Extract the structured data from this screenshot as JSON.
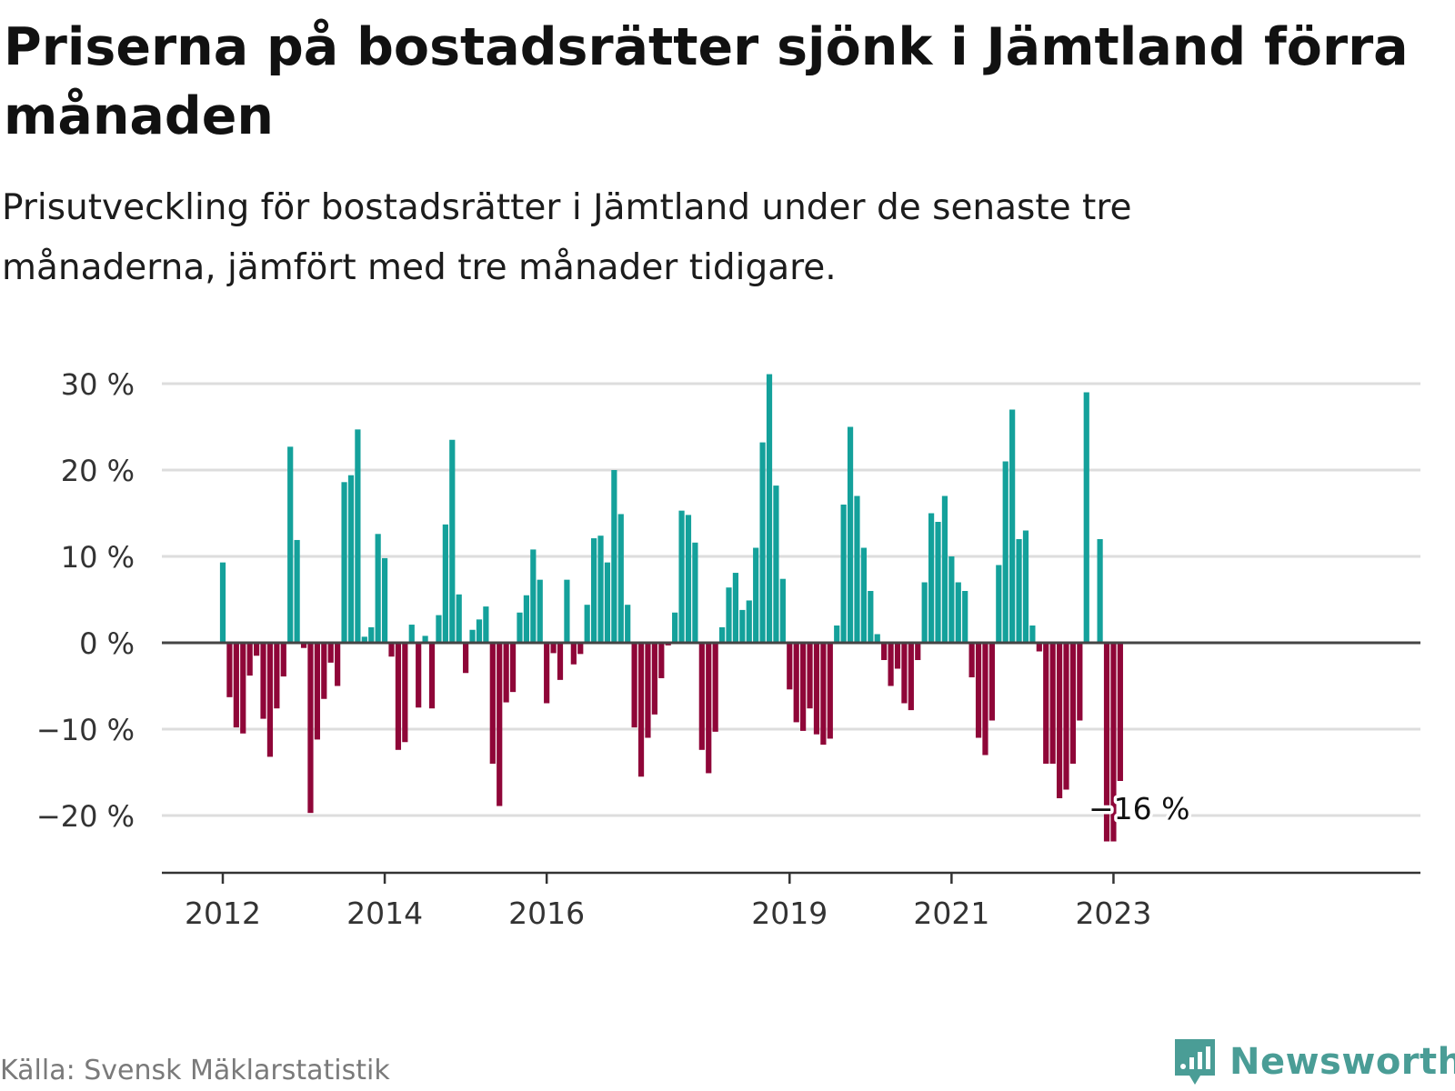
{
  "title": "Priserna på bostadsrätter sjönk i Jämtland förra månaden",
  "subtitle": "Prisutveckling för bostadsrätter i Jämtland under de senaste tre månaderna, jämfört med tre månader tidigare.",
  "source": "Källa: Svensk Mäklarstatistik",
  "logo_text": "Newsworthy",
  "colors": {
    "positive": "#14a19b",
    "negative": "#8f0638",
    "grid": "#dddddd",
    "zero": "#444444",
    "logo": "#4a9d96"
  },
  "chart_data": {
    "type": "bar",
    "ylim": [
      -25,
      33
    ],
    "yticks": [
      {
        "value": 30,
        "label": "30 %"
      },
      {
        "value": 20,
        "label": "20 %"
      },
      {
        "value": 10,
        "label": "10 %"
      },
      {
        "value": 0,
        "label": "0 %"
      },
      {
        "value": -10,
        "label": "−10 %"
      },
      {
        "value": -20,
        "label": "−20 %"
      }
    ],
    "xticks": [
      {
        "index": 0,
        "label": "2012"
      },
      {
        "index": 24,
        "label": "2014"
      },
      {
        "index": 48,
        "label": "2016"
      },
      {
        "index": 84,
        "label": "2019"
      },
      {
        "index": 108,
        "label": "2021"
      },
      {
        "index": 132,
        "label": "2023"
      }
    ],
    "annotation": {
      "index": 135,
      "value": -16,
      "label": "−16 %"
    },
    "values": [
      9.3,
      -6.3,
      -9.8,
      -10.5,
      -3.8,
      -1.5,
      -8.8,
      -13.2,
      -7.6,
      -3.9,
      22.7,
      11.9,
      -0.6,
      -19.7,
      -11.2,
      -6.5,
      -2.3,
      -5.0,
      18.6,
      19.4,
      24.7,
      0.7,
      1.8,
      12.6,
      9.8,
      -1.6,
      -12.4,
      -11.5,
      2.1,
      -7.5,
      0.8,
      -7.6,
      3.2,
      13.7,
      23.5,
      5.6,
      -3.5,
      1.5,
      2.7,
      4.2,
      -14.0,
      -18.9,
      -6.9,
      -5.7,
      3.5,
      5.5,
      10.8,
      7.3,
      -7.0,
      -1.2,
      -4.3,
      7.3,
      -2.5,
      -1.3,
      4.4,
      12.1,
      12.4,
      9.3,
      20.0,
      14.9,
      4.4,
      -9.8,
      -15.5,
      -11.0,
      -8.3,
      -4.1,
      -0.3,
      3.5,
      15.3,
      14.8,
      11.6,
      -12.4,
      -15.1,
      -10.3,
      1.8,
      6.4,
      8.1,
      3.8,
      4.9,
      11.0,
      23.2,
      31.1,
      18.2,
      7.4,
      -5.4,
      -9.2,
      -10.2,
      -7.6,
      -10.6,
      -11.8,
      -11.1,
      2.0,
      16.0,
      25.0,
      17.0,
      11.0,
      6.0,
      1.0,
      -2.0,
      -5.0,
      -3.0,
      -7.0,
      -7.8,
      -2.0,
      7.0,
      15.0,
      14.0,
      17.0,
      10.0,
      7.0,
      6.0,
      -4.0,
      -11.0,
      -13.0,
      -9.0,
      9.0,
      21.0,
      27.0,
      12.0,
      13.0,
      2.0,
      -1.0,
      -14.0,
      -14.0,
      -18.0,
      -17.0,
      -14.0,
      -9.0,
      29.0,
      null,
      12.0,
      -23.0,
      -23.0,
      -16.0
    ]
  }
}
